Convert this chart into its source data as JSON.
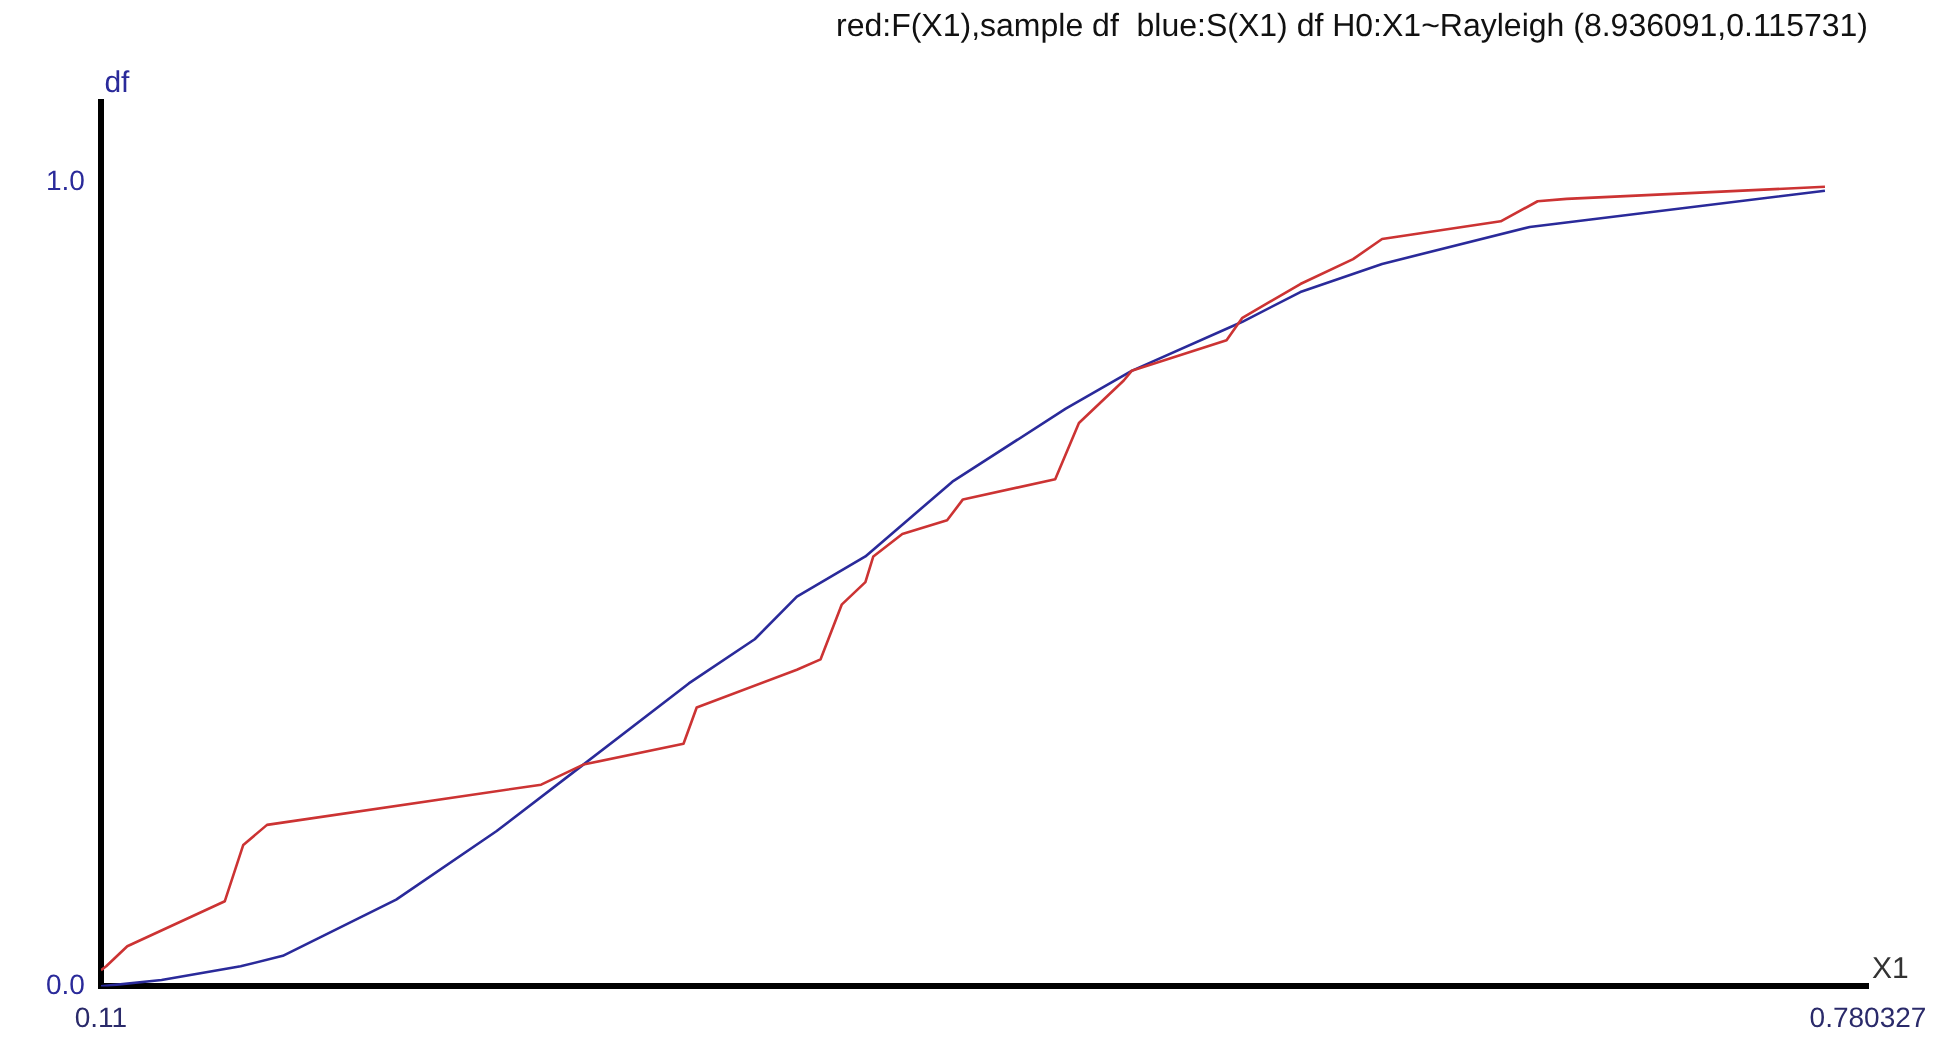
{
  "chart_data": {
    "type": "line",
    "title": "red:F(X1),sample df  blue:S(X1) df H0:X1~Rayleigh (8.936091,0.115731)",
    "xlabel": "X1",
    "ylabel": "df",
    "xlim": [
      0.11,
      0.780327
    ],
    "xticks": [
      0.11,
      0.780327
    ],
    "ylim": [
      0,
      1.1
    ],
    "yticks": [
      {
        "value": 0,
        "label": "0.0"
      },
      {
        "value": 1,
        "label": "1.0"
      }
    ],
    "grid": false,
    "legend": false,
    "marker": "none",
    "line_style": "solid",
    "series": [
      {
        "color": "#cc3333",
        "x": [
          0.11,
          0.112,
          0.12,
          0.157,
          0.164,
          0.173,
          0.277,
          0.293,
          0.331,
          0.336,
          0.374,
          0.383,
          0.391,
          0.4,
          0.403,
          0.414,
          0.431,
          0.437,
          0.472,
          0.481,
          0.498,
          0.501,
          0.537,
          0.543,
          0.565,
          0.585,
          0.596,
          0.641,
          0.655,
          0.666,
          0.764
        ],
        "values": [
          0.02,
          0.025,
          0.05,
          0.106,
          0.176,
          0.201,
          0.251,
          0.276,
          0.302,
          0.347,
          0.394,
          0.407,
          0.475,
          0.503,
          0.535,
          0.563,
          0.58,
          0.606,
          0.631,
          0.701,
          0.754,
          0.766,
          0.804,
          0.832,
          0.874,
          0.905,
          0.93,
          0.952,
          0.977,
          0.98,
          0.995
        ]
      },
      {
        "color": "#2a2a9a",
        "x": [
          0.11,
          0.133,
          0.163,
          0.179,
          0.222,
          0.26,
          0.293,
          0.333,
          0.358,
          0.374,
          0.4,
          0.433,
          0.476,
          0.501,
          0.543,
          0.565,
          0.596,
          0.652,
          0.764
        ],
        "values": [
          0,
          0.008,
          0.025,
          0.038,
          0.108,
          0.193,
          0.276,
          0.377,
          0.432,
          0.485,
          0.535,
          0.628,
          0.719,
          0.766,
          0.827,
          0.864,
          0.899,
          0.945,
          0.99
        ]
      }
    ]
  }
}
